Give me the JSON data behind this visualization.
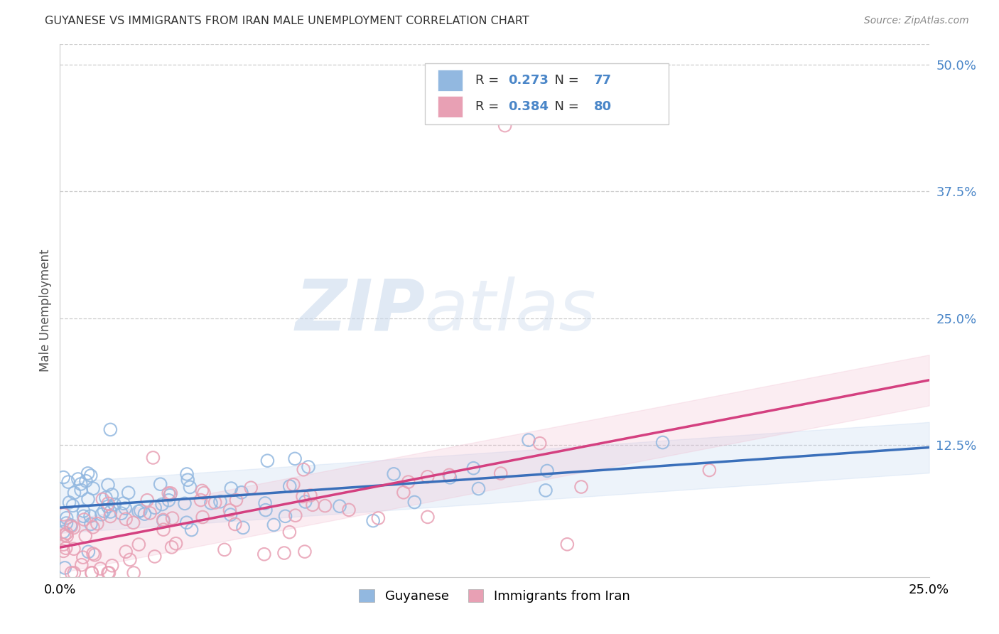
{
  "title": "GUYANESE VS IMMIGRANTS FROM IRAN MALE UNEMPLOYMENT CORRELATION CHART",
  "source": "Source: ZipAtlas.com",
  "ylabel": "Male Unemployment",
  "xlim": [
    0.0,
    0.25
  ],
  "ylim": [
    -0.005,
    0.52
  ],
  "xticks": [
    0.0,
    0.05,
    0.1,
    0.15,
    0.2,
    0.25
  ],
  "yticks": [
    0.0,
    0.125,
    0.25,
    0.375,
    0.5
  ],
  "ytick_labels": [
    "",
    "12.5%",
    "25.0%",
    "37.5%",
    "50.0%"
  ],
  "xtick_labels": [
    "0.0%",
    "",
    "",
    "",
    "",
    "25.0%"
  ],
  "blue_R": 0.273,
  "blue_N": 77,
  "pink_R": 0.384,
  "pink_N": 80,
  "blue_color": "#92b8e0",
  "pink_color": "#e8a0b4",
  "blue_line_color": "#3a6fba",
  "pink_line_color": "#d44080",
  "blue_fill_color": "#b8d0ee",
  "pink_fill_color": "#f0b8cc",
  "legend_label_blue": "Guyanese",
  "legend_label_pink": "Immigrants from Iran",
  "watermark_zip": "ZIP",
  "watermark_atlas": "atlas",
  "background_color": "#ffffff",
  "axis_color": "#cccccc",
  "ytick_color": "#4a86c8"
}
